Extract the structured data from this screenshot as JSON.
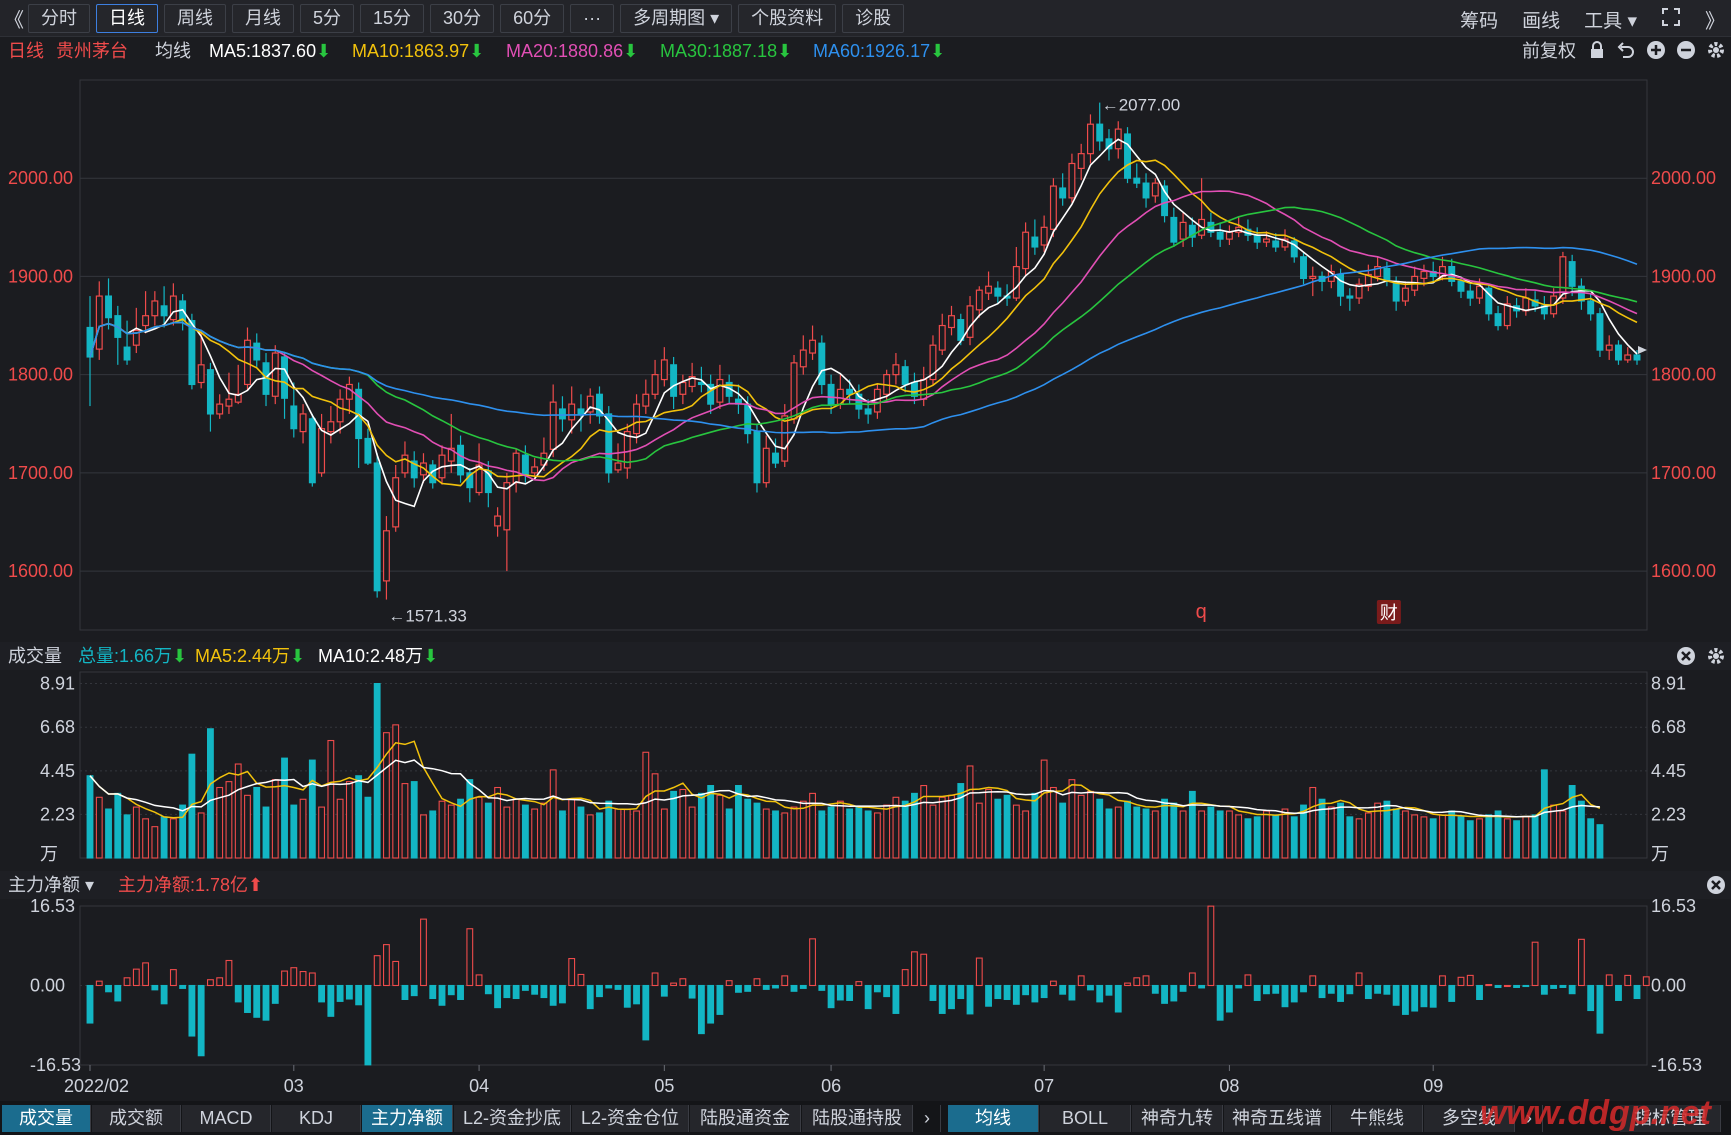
{
  "topbar": {
    "left_chevron": "《",
    "right_chevron": "》",
    "buttons": [
      "分时",
      "日线",
      "周线",
      "月线",
      "5分",
      "15分",
      "30分",
      "60分",
      "···",
      "多周期图 ▾",
      "个股资料",
      "诊股"
    ],
    "active_index": 1,
    "right_items": [
      "筹码",
      "画线",
      "工具 ▾"
    ]
  },
  "info": {
    "period": "日线",
    "stock": "贵州茅台",
    "avg_label": "均线",
    "ma5": "MA5:1837.60",
    "ma10": "MA10:1863.97",
    "ma20": "MA20:1880.86",
    "ma30": "MA30:1887.18",
    "ma60": "MA60:1926.17",
    "down_arrow": "⬇",
    "adjust": "前复权"
  },
  "colors": {
    "up": "#ef4b4b",
    "down": "#13b6c4",
    "ma5": "#ffffff",
    "ma10": "#f2c20c",
    "ma20": "#e24fb5",
    "ma30": "#28c53f",
    "ma60": "#2e90ee",
    "axis_text": "#ef4b4b",
    "grid": "#34363c"
  },
  "price_panel": {
    "y_ticks": [
      "2000.00",
      "1900.00",
      "1800.00",
      "1700.00",
      "1600.00"
    ],
    "high_label": "←2077.00",
    "low_label": "←1571.33",
    "marker_q": "q",
    "marker_cai": "财"
  },
  "volume_panel": {
    "title": "成交量",
    "total": "总量:1.66万",
    "ma5": "MA5:2.44万",
    "ma10": "MA10:2.48万",
    "y_ticks": [
      "8.91",
      "6.68",
      "4.45",
      "2.23",
      "万"
    ]
  },
  "flow_panel": {
    "title": "主力净额 ▾",
    "value": "主力净额:1.78亿",
    "y_ticks": [
      "16.53",
      "0.00",
      "-16.53"
    ]
  },
  "x_axis": [
    "2022/02",
    "03",
    "04",
    "05",
    "06",
    "07",
    "08",
    "09"
  ],
  "bottom_tabs_left": [
    "成交量",
    "成交额",
    "MACD",
    "KDJ",
    "主力净额",
    "L2-资金抄底",
    "L2-资金仓位",
    "陆股通资金",
    "陆股通持股"
  ],
  "bottom_tabs_right": [
    "均线",
    "BOLL",
    "神奇九转",
    "神奇五线谱",
    "牛熊线",
    "多空线"
  ],
  "bottom_tail": "指标管理",
  "watermark": "www.ddgp.net",
  "chart_data": {
    "type": "candlestick",
    "title": "贵州茅台 日线",
    "x_range": [
      "2022/02",
      "2022/09"
    ],
    "price_ylim": [
      1540,
      2100
    ],
    "volume_ylim": [
      0,
      9.5
    ],
    "flow_ylim": [
      -16.53,
      16.53
    ],
    "candles": [
      [
        1848,
        1818,
        1880,
        1768
      ],
      [
        1826,
        1880,
        1895,
        1815
      ],
      [
        1880,
        1858,
        1898,
        1846
      ],
      [
        1860,
        1838,
        1870,
        1810
      ],
      [
        1828,
        1815,
        1855,
        1810
      ],
      [
        1830,
        1845,
        1868,
        1822
      ],
      [
        1850,
        1860,
        1885,
        1842
      ],
      [
        1860,
        1875,
        1885,
        1850
      ],
      [
        1870,
        1860,
        1890,
        1848
      ],
      [
        1856,
        1880,
        1893,
        1850
      ],
      [
        1875,
        1855,
        1882,
        1845
      ],
      [
        1855,
        1790,
        1862,
        1785
      ],
      [
        1792,
        1810,
        1845,
        1786
      ],
      [
        1805,
        1760,
        1812,
        1742
      ],
      [
        1760,
        1770,
        1780,
        1755
      ],
      [
        1768,
        1775,
        1802,
        1760
      ],
      [
        1772,
        1780,
        1810,
        1770
      ],
      [
        1790,
        1835,
        1848,
        1784
      ],
      [
        1832,
        1815,
        1842,
        1808
      ],
      [
        1812,
        1780,
        1822,
        1768
      ],
      [
        1778,
        1822,
        1830,
        1770
      ],
      [
        1818,
        1776,
        1822,
        1755
      ],
      [
        1768,
        1745,
        1792,
        1736
      ],
      [
        1742,
        1760,
        1770,
        1730
      ],
      [
        1755,
        1690,
        1760,
        1686
      ],
      [
        1700,
        1745,
        1760,
        1696
      ],
      [
        1742,
        1752,
        1768,
        1730
      ],
      [
        1752,
        1775,
        1785,
        1740
      ],
      [
        1775,
        1790,
        1798,
        1760
      ],
      [
        1785,
        1735,
        1792,
        1705
      ],
      [
        1735,
        1710,
        1745,
        1708
      ],
      [
        1710,
        1580,
        1720,
        1573
      ],
      [
        1590,
        1641,
        1656,
        1571
      ],
      [
        1645,
        1695,
        1708,
        1640
      ],
      [
        1700,
        1718,
        1732,
        1695
      ],
      [
        1712,
        1695,
        1722,
        1685
      ],
      [
        1698,
        1710,
        1720,
        1690
      ],
      [
        1708,
        1690,
        1713,
        1684
      ],
      [
        1695,
        1718,
        1728,
        1688
      ],
      [
        1712,
        1725,
        1760,
        1700
      ],
      [
        1728,
        1698,
        1738,
        1690
      ],
      [
        1700,
        1685,
        1705,
        1670
      ],
      [
        1680,
        1708,
        1730,
        1677
      ],
      [
        1702,
        1680,
        1712,
        1665
      ],
      [
        1646,
        1656,
        1665,
        1635
      ],
      [
        1642,
        1690,
        1700,
        1600
      ],
      [
        1690,
        1720,
        1724,
        1680
      ],
      [
        1718,
        1698,
        1728,
        1690
      ],
      [
        1700,
        1706,
        1715,
        1695
      ],
      [
        1708,
        1720,
        1736,
        1702
      ],
      [
        1724,
        1772,
        1790,
        1716
      ],
      [
        1765,
        1755,
        1778,
        1742
      ],
      [
        1754,
        1770,
        1788,
        1740
      ],
      [
        1765,
        1760,
        1780,
        1742
      ],
      [
        1762,
        1778,
        1786,
        1750
      ],
      [
        1780,
        1758,
        1788,
        1750
      ],
      [
        1760,
        1700,
        1768,
        1690
      ],
      [
        1703,
        1710,
        1730,
        1700
      ],
      [
        1705,
        1742,
        1750,
        1694
      ],
      [
        1740,
        1770,
        1780,
        1730
      ],
      [
        1768,
        1780,
        1795,
        1760
      ],
      [
        1780,
        1800,
        1815,
        1775
      ],
      [
        1795,
        1815,
        1828,
        1788
      ],
      [
        1810,
        1778,
        1818,
        1765
      ],
      [
        1780,
        1792,
        1800,
        1770
      ],
      [
        1788,
        1798,
        1812,
        1782
      ],
      [
        1792,
        1790,
        1808,
        1782
      ],
      [
        1790,
        1770,
        1800,
        1760
      ],
      [
        1772,
        1795,
        1810,
        1765
      ],
      [
        1792,
        1778,
        1800,
        1770
      ],
      [
        1775,
        1770,
        1790,
        1760
      ],
      [
        1770,
        1740,
        1778,
        1730
      ],
      [
        1742,
        1690,
        1750,
        1680
      ],
      [
        1690,
        1725,
        1738,
        1685
      ],
      [
        1720,
        1710,
        1735,
        1705
      ],
      [
        1712,
        1758,
        1770,
        1706
      ],
      [
        1755,
        1812,
        1820,
        1750
      ],
      [
        1808,
        1825,
        1840,
        1800
      ],
      [
        1822,
        1835,
        1850,
        1815
      ],
      [
        1832,
        1790,
        1840,
        1780
      ],
      [
        1790,
        1770,
        1800,
        1760
      ],
      [
        1770,
        1785,
        1800,
        1765
      ],
      [
        1785,
        1780,
        1795,
        1770
      ],
      [
        1780,
        1765,
        1790,
        1755
      ],
      [
        1765,
        1760,
        1775,
        1750
      ],
      [
        1762,
        1785,
        1790,
        1755
      ],
      [
        1780,
        1800,
        1805,
        1772
      ],
      [
        1800,
        1810,
        1822,
        1790
      ],
      [
        1808,
        1790,
        1815,
        1782
      ],
      [
        1792,
        1778,
        1802,
        1770
      ],
      [
        1775,
        1795,
        1808,
        1768
      ],
      [
        1795,
        1830,
        1840,
        1790
      ],
      [
        1825,
        1850,
        1862,
        1820
      ],
      [
        1848,
        1860,
        1870,
        1840
      ],
      [
        1856,
        1835,
        1862,
        1830
      ],
      [
        1838,
        1870,
        1880,
        1830
      ],
      [
        1866,
        1886,
        1890,
        1858
      ],
      [
        1883,
        1890,
        1905,
        1876
      ],
      [
        1888,
        1880,
        1895,
        1872
      ],
      [
        1880,
        1878,
        1892,
        1870
      ],
      [
        1878,
        1910,
        1930,
        1875
      ],
      [
        1908,
        1945,
        1955,
        1900
      ],
      [
        1940,
        1930,
        1958,
        1922
      ],
      [
        1932,
        1950,
        1962,
        1925
      ],
      [
        1948,
        1992,
        2000,
        1940
      ],
      [
        1990,
        1980,
        2005,
        1972
      ],
      [
        1980,
        2015,
        2025,
        1975
      ],
      [
        2010,
        2025,
        2035,
        1998
      ],
      [
        2025,
        2055,
        2065,
        2015
      ],
      [
        2055,
        2038,
        2077,
        2028
      ],
      [
        2040,
        2030,
        2050,
        2018
      ],
      [
        2030,
        2050,
        2058,
        2020
      ],
      [
        2045,
        2000,
        2052,
        1995
      ],
      [
        2000,
        1995,
        2015,
        1990
      ],
      [
        1995,
        1980,
        2005,
        1970
      ],
      [
        1982,
        1995,
        2000,
        1975
      ],
      [
        1992,
        1962,
        1998,
        1955
      ],
      [
        1960,
        1935,
        1970,
        1930
      ],
      [
        1938,
        1955,
        1965,
        1930
      ],
      [
        1952,
        1940,
        1960,
        1930
      ],
      [
        1942,
        1958,
        2000,
        1938
      ],
      [
        1955,
        1945,
        1965,
        1940
      ],
      [
        1945,
        1938,
        1955,
        1930
      ],
      [
        1938,
        1945,
        1952,
        1932
      ],
      [
        1945,
        1950,
        1960,
        1940
      ],
      [
        1948,
        1942,
        1958,
        1936
      ],
      [
        1942,
        1935,
        1950,
        1928
      ],
      [
        1935,
        1938,
        1946,
        1930
      ],
      [
        1936,
        1930,
        1944,
        1925
      ],
      [
        1930,
        1938,
        1948,
        1926
      ],
      [
        1936,
        1920,
        1940,
        1914
      ],
      [
        1920,
        1898,
        1925,
        1892
      ],
      [
        1898,
        1900,
        1910,
        1880
      ],
      [
        1900,
        1895,
        1905,
        1885
      ],
      [
        1895,
        1905,
        1912,
        1888
      ],
      [
        1902,
        1880,
        1908,
        1870
      ],
      [
        1880,
        1878,
        1888,
        1865
      ],
      [
        1878,
        1892,
        1898,
        1872
      ],
      [
        1890,
        1902,
        1912,
        1885
      ],
      [
        1900,
        1910,
        1920,
        1895
      ],
      [
        1908,
        1895,
        1915,
        1890
      ],
      [
        1895,
        1875,
        1900,
        1865
      ],
      [
        1875,
        1888,
        1895,
        1870
      ],
      [
        1886,
        1900,
        1910,
        1880
      ],
      [
        1898,
        1905,
        1912,
        1890
      ],
      [
        1905,
        1900,
        1915,
        1895
      ],
      [
        1900,
        1910,
        1920,
        1896
      ],
      [
        1910,
        1895,
        1918,
        1890
      ],
      [
        1895,
        1885,
        1900,
        1878
      ],
      [
        1885,
        1878,
        1892,
        1870
      ],
      [
        1878,
        1890,
        1898,
        1872
      ],
      [
        1888,
        1862,
        1892,
        1855
      ],
      [
        1862,
        1850,
        1870,
        1845
      ],
      [
        1850,
        1872,
        1880,
        1846
      ],
      [
        1870,
        1865,
        1878,
        1858
      ],
      [
        1865,
        1878,
        1888,
        1860
      ],
      [
        1876,
        1870,
        1885,
        1864
      ],
      [
        1870,
        1862,
        1880,
        1856
      ],
      [
        1862,
        1880,
        1888,
        1858
      ],
      [
        1878,
        1920,
        1925,
        1872
      ],
      [
        1915,
        1890,
        1922,
        1880
      ],
      [
        1890,
        1875,
        1898,
        1866
      ],
      [
        1875,
        1862,
        1882,
        1855
      ],
      [
        1862,
        1825,
        1868,
        1818
      ],
      [
        1825,
        1830,
        1840,
        1815
      ],
      [
        1830,
        1815,
        1835,
        1810
      ],
      [
        1815,
        1820,
        1828,
        1812
      ],
      [
        1820,
        1815,
        1825,
        1810
      ]
    ],
    "volume": [
      4.2,
      3.1,
      2.5,
      3.3,
      2.2,
      2.6,
      2.0,
      1.6,
      2.1,
      2.0,
      2.7,
      5.3,
      2.3,
      6.6,
      3.6,
      3.9,
      4.8,
      3.2,
      3.6,
      2.6,
      4.0,
      5.1,
      2.7,
      3.0,
      5.0,
      2.6,
      6.0,
      3.0,
      3.9,
      4.2,
      3.1,
      8.91,
      6.4,
      6.8,
      3.8,
      3.9,
      2.2,
      2.4,
      2.9,
      2.7,
      3.0,
      4.0,
      3.1,
      2.8,
      3.6,
      2.6,
      3.0,
      2.7,
      2.5,
      2.8,
      4.5,
      2.4,
      3.0,
      2.6,
      2.2,
      2.3,
      2.9,
      2.5,
      2.5,
      2.4,
      5.4,
      4.3,
      2.5,
      3.4,
      3.5,
      2.6,
      3.3,
      3.7,
      3.2,
      2.5,
      3.7,
      3.0,
      2.8,
      2.5,
      2.4,
      2.3,
      2.6,
      2.9,
      3.3,
      2.4,
      2.6,
      2.9,
      2.5,
      2.6,
      2.4,
      2.3,
      2.7,
      3.1,
      2.9,
      3.3,
      3.7,
      2.7,
      3.1,
      3.2,
      3.8,
      4.7,
      2.8,
      3.5,
      3.0,
      3.2,
      2.7,
      2.4,
      3.3,
      5.0,
      3.6,
      2.8,
      4.0,
      3.2,
      3.4,
      3.0,
      2.5,
      2.6,
      2.9,
      2.6,
      2.5,
      2.4,
      3.0,
      2.8,
      2.4,
      3.4,
      2.4,
      2.6,
      2.4,
      2.4,
      2.2,
      2.0,
      2.1,
      2.4,
      2.2,
      2.5,
      2.1,
      2.7,
      3.6,
      3.0,
      2.6,
      2.8,
      2.1,
      2.0,
      2.3,
      2.8,
      2.9,
      2.5,
      2.4,
      2.2,
      2.1,
      2.0,
      2.2,
      2.4,
      2.1,
      1.9,
      2.0,
      2.2,
      2.4,
      2.0,
      1.9,
      2.1,
      2.2,
      4.5,
      2.7,
      2.4,
      3.7,
      2.9,
      2.0,
      1.7
    ],
    "flow": [
      -7.8,
      0.9,
      -1.3,
      -3.2,
      1.6,
      3.4,
      4.7,
      -0.9,
      -3.8,
      3.3,
      -0.6,
      -10.5,
      -14.6,
      1.2,
      1.6,
      5.2,
      -3.4,
      -5.6,
      -6.6,
      -7.2,
      -3.7,
      3.0,
      3.7,
      2.9,
      2.6,
      -3.4,
      -6.4,
      -3.3,
      -2.8,
      -4.0,
      -16.5,
      6.2,
      8.5,
      5.0,
      -2.9,
      -2.1,
      13.8,
      -2.7,
      -4.1,
      -1.9,
      -2.9,
      11.8,
      2.2,
      -1.7,
      -4.6,
      -2.5,
      -2.7,
      -1.0,
      -1.8,
      -2.5,
      -4.1,
      -3.6,
      5.6,
      2.3,
      -4.8,
      -2.3,
      -0.5,
      -0.8,
      -4.5,
      -3.8,
      -11.3,
      2.6,
      -2.2,
      0.5,
      1.4,
      -2.6,
      -10.0,
      -7.8,
      -6.0,
      1.0,
      -1.4,
      -1.2,
      1.4,
      -0.8,
      -0.5,
      2.0,
      -1.2,
      -0.6,
      9.7,
      -1.0,
      -4.6,
      -3.0,
      -3.1,
      0.8,
      -4.8,
      -1.3,
      -2.3,
      -5.8,
      3.3,
      7.0,
      6.5,
      -3.1,
      -5.8,
      -4.8,
      -2.7,
      -5.9,
      5.7,
      -4.3,
      -2.7,
      -2.9,
      -3.9,
      -1.9,
      -3.4,
      -2.5,
      0.9,
      -1.8,
      -3.0,
      2.0,
      -0.9,
      -3.4,
      -2.0,
      -5.5,
      0.5,
      1.6,
      2.0,
      -1.6,
      -3.7,
      -3.2,
      -1.2,
      2.6,
      -0.5,
      16.5,
      -7.2,
      -5.5,
      -0.5,
      2.2,
      -3.1,
      -1.7,
      -1.6,
      -4.4,
      -3.4,
      -1.3,
      2.0,
      -2.5,
      -1.6,
      -3.3,
      -1.7,
      2.6,
      -2.7,
      -1.6,
      -1.8,
      -4.1,
      -6.0,
      -5.3,
      -4.4,
      -4.5,
      2.0,
      -3.3,
      1.7,
      2.1,
      -2.9,
      0.2,
      -0.4,
      0.0,
      -0.4,
      -0.2,
      9.0,
      -1.8,
      -0.6,
      -0.4,
      -1.7,
      9.6,
      -5.2,
      -9.9,
      2.2,
      -3.1,
      2.1,
      -2.7,
      1.8
    ],
    "x_ticks": [
      "2022/02",
      "03",
      "04",
      "05",
      "06",
      "07",
      "08",
      "09"
    ]
  }
}
